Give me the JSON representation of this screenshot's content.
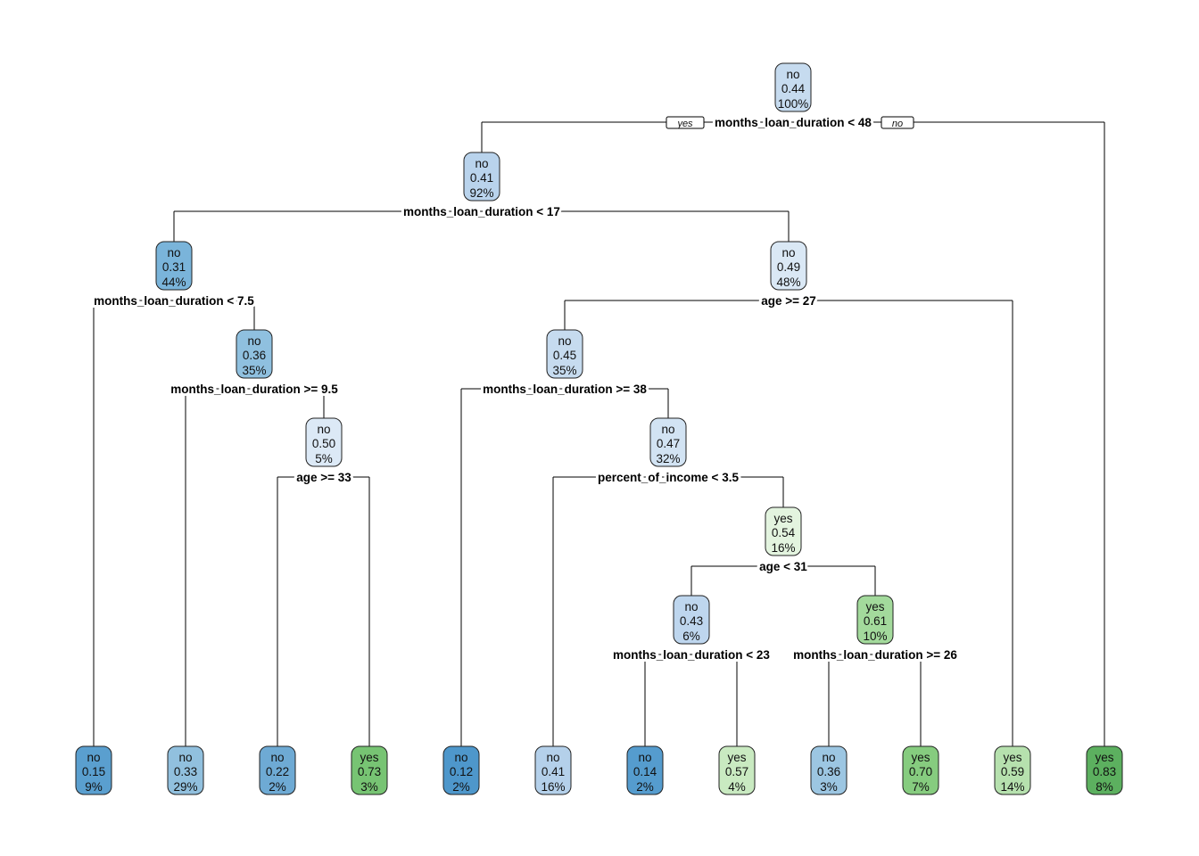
{
  "tree": {
    "branch_labels": {
      "yes": "yes",
      "no": "no"
    },
    "nodes": [
      {
        "id": "n1",
        "class": "no",
        "prob": "0.44",
        "percent": "100%",
        "fill": "#c6dbef",
        "split": "months_loan_duration < 48",
        "children": [
          "n2",
          "l12"
        ]
      },
      {
        "id": "n2",
        "class": "no",
        "prob": "0.41",
        "percent": "92%",
        "fill": "#b9d3ec",
        "split": "months_loan_duration < 17",
        "children": [
          "n3",
          "n4"
        ]
      },
      {
        "id": "n3",
        "class": "no",
        "prob": "0.31",
        "percent": "44%",
        "fill": "#7ab4da",
        "split": "months_loan_duration < 7.5",
        "children": [
          "l1",
          "n5"
        ]
      },
      {
        "id": "n4",
        "class": "no",
        "prob": "0.49",
        "percent": "48%",
        "fill": "#dae8f5",
        "split": "age >= 27",
        "children": [
          "n6",
          "l11"
        ]
      },
      {
        "id": "n5",
        "class": "no",
        "prob": "0.36",
        "percent": "35%",
        "fill": "#8fc0df",
        "split": "months_loan_duration >= 9.5",
        "children": [
          "l2",
          "n7"
        ]
      },
      {
        "id": "n6",
        "class": "no",
        "prob": "0.45",
        "percent": "35%",
        "fill": "#c6dbef",
        "split": "months_loan_duration >= 38",
        "children": [
          "l5",
          "n8"
        ]
      },
      {
        "id": "n7",
        "class": "no",
        "prob": "0.50",
        "percent": "5%",
        "fill": "#dce9f6",
        "split": "age >= 33",
        "children": [
          "l3",
          "l4"
        ]
      },
      {
        "id": "n8",
        "class": "no",
        "prob": "0.47",
        "percent": "32%",
        "fill": "#d2e3f3",
        "split": "percent_of_income < 3.5",
        "children": [
          "l6",
          "n9"
        ]
      },
      {
        "id": "n9",
        "class": "yes",
        "prob": "0.54",
        "percent": "16%",
        "fill": "#e3f4df",
        "split": "age < 31",
        "children": [
          "n10",
          "n11"
        ]
      },
      {
        "id": "n10",
        "class": "no",
        "prob": "0.43",
        "percent": "6%",
        "fill": "#bed6ee",
        "split": "months_loan_duration < 23",
        "children": [
          "l7",
          "l8"
        ]
      },
      {
        "id": "n11",
        "class": "yes",
        "prob": "0.61",
        "percent": "10%",
        "fill": "#a3da9c",
        "split": "months_loan_duration >= 26",
        "children": [
          "l9",
          "l10"
        ]
      },
      {
        "id": "l1",
        "class": "no",
        "prob": "0.15",
        "percent": "9%",
        "fill": "#5a9fcf"
      },
      {
        "id": "l2",
        "class": "no",
        "prob": "0.33",
        "percent": "29%",
        "fill": "#91c0de"
      },
      {
        "id": "l3",
        "class": "no",
        "prob": "0.22",
        "percent": "2%",
        "fill": "#6eaad4"
      },
      {
        "id": "l4",
        "class": "yes",
        "prob": "0.73",
        "percent": "3%",
        "fill": "#77c473"
      },
      {
        "id": "l5",
        "class": "no",
        "prob": "0.12",
        "percent": "2%",
        "fill": "#4e97cb"
      },
      {
        "id": "l6",
        "class": "no",
        "prob": "0.41",
        "percent": "16%",
        "fill": "#b4d0ea"
      },
      {
        "id": "l7",
        "class": "no",
        "prob": "0.14",
        "percent": "2%",
        "fill": "#559cce"
      },
      {
        "id": "l8",
        "class": "yes",
        "prob": "0.57",
        "percent": "4%",
        "fill": "#c9eac1"
      },
      {
        "id": "l9",
        "class": "no",
        "prob": "0.36",
        "percent": "3%",
        "fill": "#9cc6e2"
      },
      {
        "id": "l10",
        "class": "yes",
        "prob": "0.70",
        "percent": "7%",
        "fill": "#86cc7f"
      },
      {
        "id": "l11",
        "class": "yes",
        "prob": "0.59",
        "percent": "14%",
        "fill": "#b6e1ae"
      },
      {
        "id": "l12",
        "class": "yes",
        "prob": "0.83",
        "percent": "8%",
        "fill": "#5cb05f"
      }
    ]
  }
}
